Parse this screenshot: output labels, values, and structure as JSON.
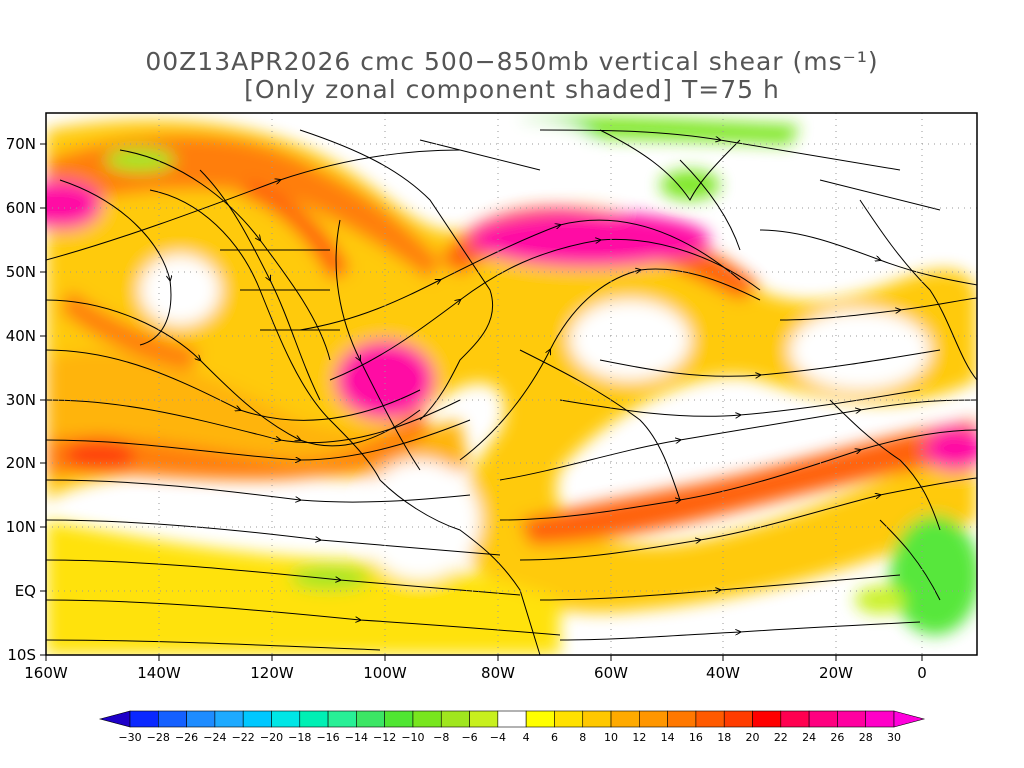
{
  "title": {
    "line1": "00Z13APR2026 cmc 500−850mb vertical shear (ms⁻¹)",
    "line2": "[Only zonal component shaded] T=75 h"
  },
  "map": {
    "lat_labels": [
      "70N",
      "60N",
      "50N",
      "40N",
      "30N",
      "20N",
      "10N",
      "EQ",
      "10S"
    ],
    "lon_labels": [
      "160W",
      "140W",
      "120W",
      "100W",
      "80W",
      "60W",
      "40W",
      "20W",
      "0"
    ]
  },
  "colorbar": {
    "ticks": [
      "−30",
      "−28",
      "−26",
      "−24",
      "−22",
      "−20",
      "−18",
      "−16",
      "−14",
      "−12",
      "−10",
      "−8",
      "−6",
      "−4",
      "4",
      "6",
      "8",
      "10",
      "12",
      "14",
      "16",
      "18",
      "20",
      "22",
      "24",
      "26",
      "28",
      "30"
    ],
    "colors": [
      "#1e00c8",
      "#0a28ff",
      "#1460ff",
      "#1e8cff",
      "#1eaaff",
      "#00c8ff",
      "#00e6e6",
      "#00f0b4",
      "#28f096",
      "#3ce664",
      "#50e632",
      "#78e61e",
      "#a0e61e",
      "#c8f01e",
      "#ffffff",
      "#ffff00",
      "#ffe100",
      "#ffc800",
      "#ffaa00",
      "#ff9600",
      "#ff7800",
      "#ff5a00",
      "#ff3c00",
      "#ff0000",
      "#ff0050",
      "#ff0080",
      "#ff00a0",
      "#ff00c8",
      "#ff00dc"
    ]
  }
}
